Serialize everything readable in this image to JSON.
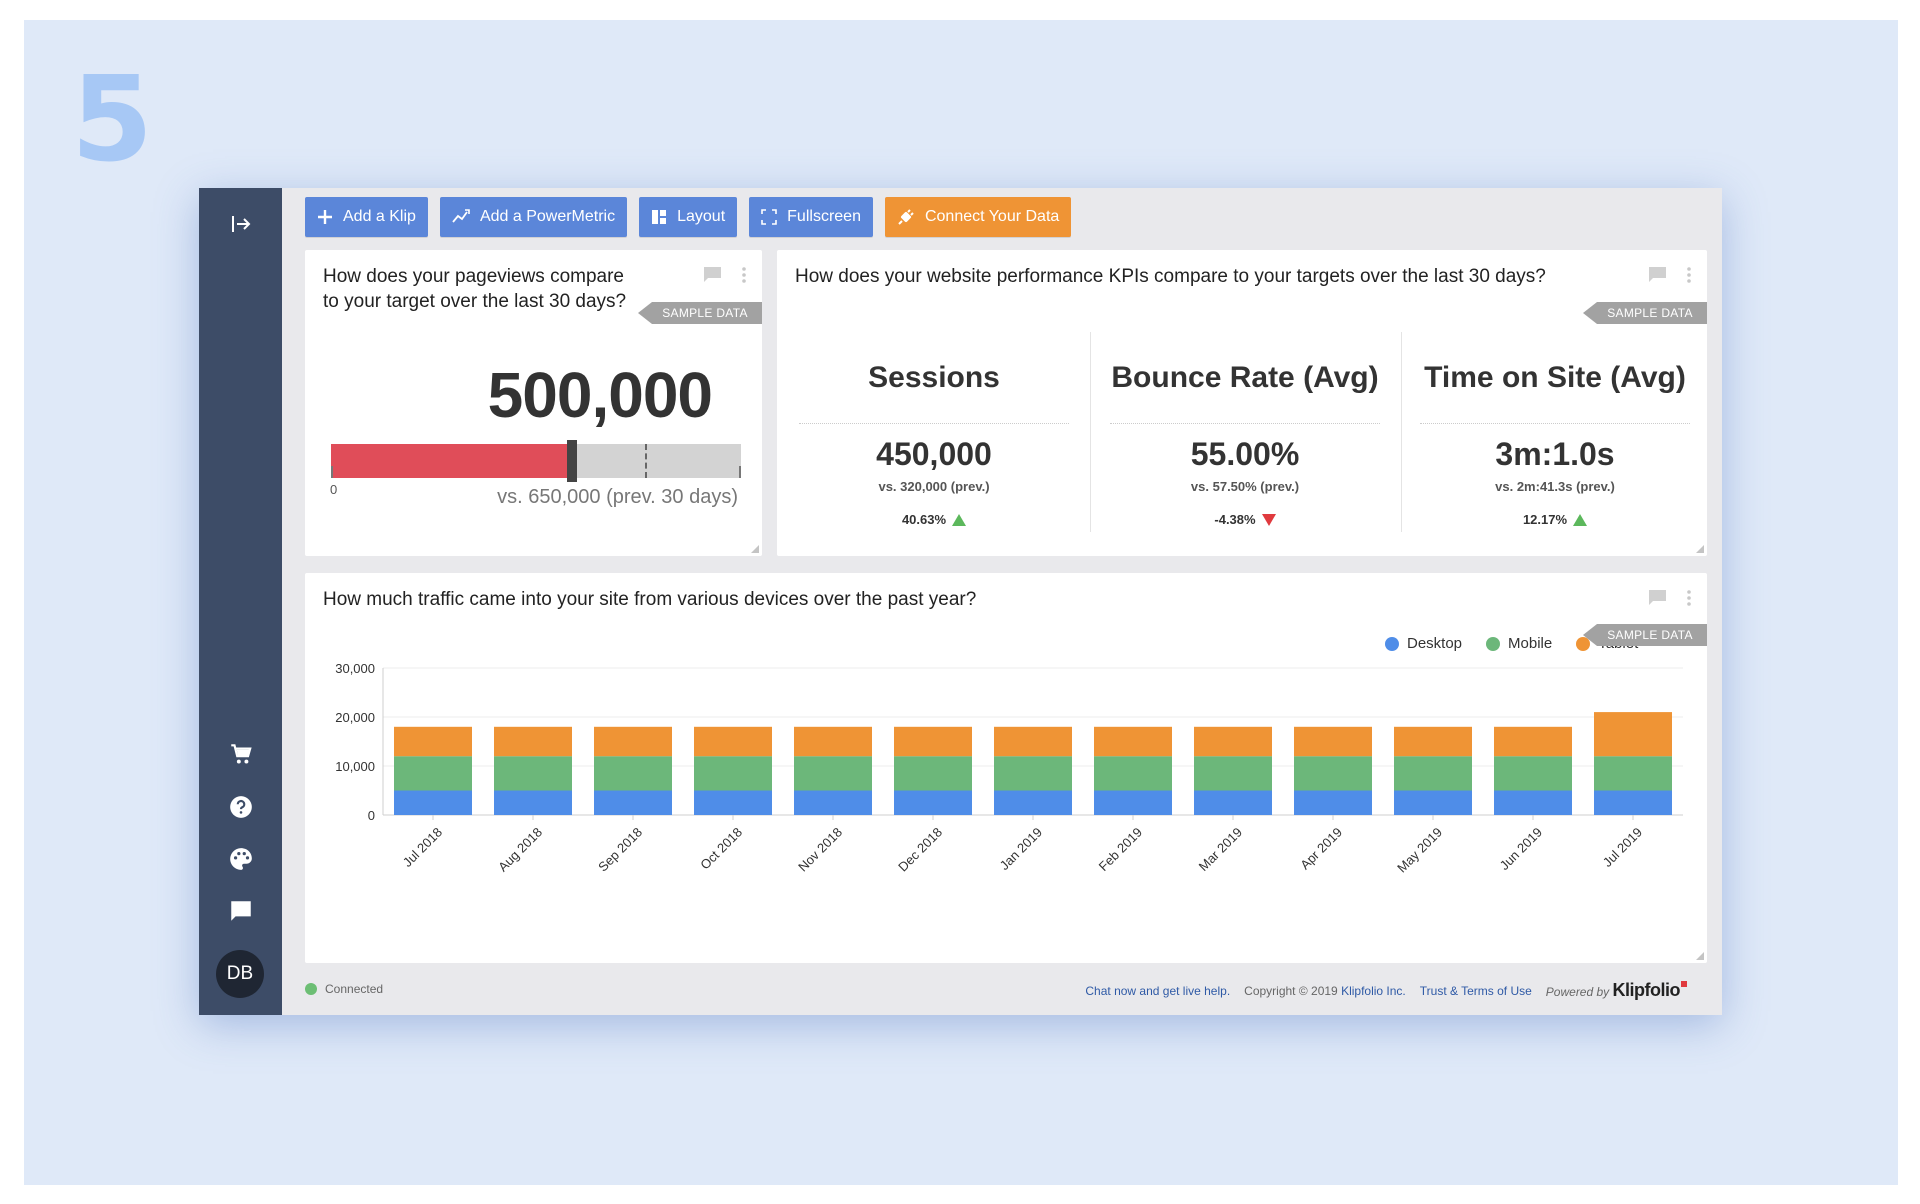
{
  "step_number": "5",
  "colors": {
    "sidebar": "#3d4c67",
    "primary_button": "#5b86d9",
    "accent_button": "#ef9435",
    "desktop": "#4f8de8",
    "mobile": "#6cb77a",
    "tablet": "#ef9435",
    "gauge_fill": "#e04d59",
    "up": "#5cb85c",
    "down": "#e03a3e"
  },
  "sidebar": {
    "icons": [
      "collapse-sidebar-icon",
      "cart-icon",
      "help-icon",
      "palette-icon",
      "chat-icon"
    ],
    "avatar_initials": "DB"
  },
  "toolbar": {
    "add_klip": "Add a Klip",
    "add_powermetric": "Add a PowerMetric",
    "layout": "Layout",
    "fullscreen": "Fullscreen",
    "connect_data": "Connect Your Data"
  },
  "pageviews_panel": {
    "title": "How does your pageviews compare to your target over the last 30 days?",
    "badge": "SAMPLE DATA",
    "value": "500,000",
    "current": 500000,
    "target": 650000,
    "scale_max": 850000,
    "zero_label": "0",
    "compare_label": "vs. 650,000 (prev. 30 days)"
  },
  "kpi_panel": {
    "title": "How does your website performance KPIs compare to your targets over the last 30 days?",
    "badge": "SAMPLE DATA",
    "kpis": [
      {
        "name": "Sessions",
        "value": "450,000",
        "prev": "vs. 320,000 (prev.)",
        "change": "40.63%",
        "direction": "up"
      },
      {
        "name": "Bounce Rate (Avg)",
        "value": "55.00%",
        "prev": "vs. 57.50% (prev.)",
        "change": "-4.38%",
        "direction": "down"
      },
      {
        "name": "Time on Site (Avg)",
        "value": "3m:1.0s",
        "prev": "vs. 2m:41.3s (prev.)",
        "change": "12.17%",
        "direction": "up"
      }
    ]
  },
  "traffic_panel": {
    "title": "How much traffic came into your site from various devices over the past year?",
    "badge": "SAMPLE DATA"
  },
  "chart_data": {
    "type": "bar",
    "stacked": true,
    "categories": [
      "Jul 2018",
      "Aug 2018",
      "Sep 2018",
      "Oct 2018",
      "Nov 2018",
      "Dec 2018",
      "Jan 2019",
      "Feb 2019",
      "Mar 2019",
      "Apr 2019",
      "May 2019",
      "Jun 2019",
      "Jul 2019"
    ],
    "series": [
      {
        "name": "Desktop",
        "values": [
          5000,
          5000,
          5000,
          5000,
          5000,
          5000,
          5000,
          5000,
          5000,
          5000,
          5000,
          5000,
          5000
        ]
      },
      {
        "name": "Mobile",
        "values": [
          7000,
          7000,
          7000,
          7000,
          7000,
          7000,
          7000,
          7000,
          7000,
          7000,
          7000,
          7000,
          7000
        ]
      },
      {
        "name": "Tablet",
        "values": [
          6000,
          6000,
          6000,
          6000,
          6000,
          6000,
          6000,
          6000,
          6000,
          6000,
          6000,
          6000,
          9000
        ]
      }
    ],
    "yticks": [
      "0",
      "10,000",
      "20,000",
      "30,000"
    ],
    "ylim": [
      0,
      30000
    ],
    "grid": true,
    "legend": "top-right",
    "title": "",
    "xlabel": "",
    "ylabel": ""
  },
  "footer": {
    "status": "Connected",
    "chat_link": "Chat now and get live help.",
    "copyright": "Copyright © 2019",
    "company": "Klipfolio Inc.",
    "terms": "Trust & Terms of Use",
    "powered_by": "Powered by",
    "brand": "Klipfolio"
  }
}
